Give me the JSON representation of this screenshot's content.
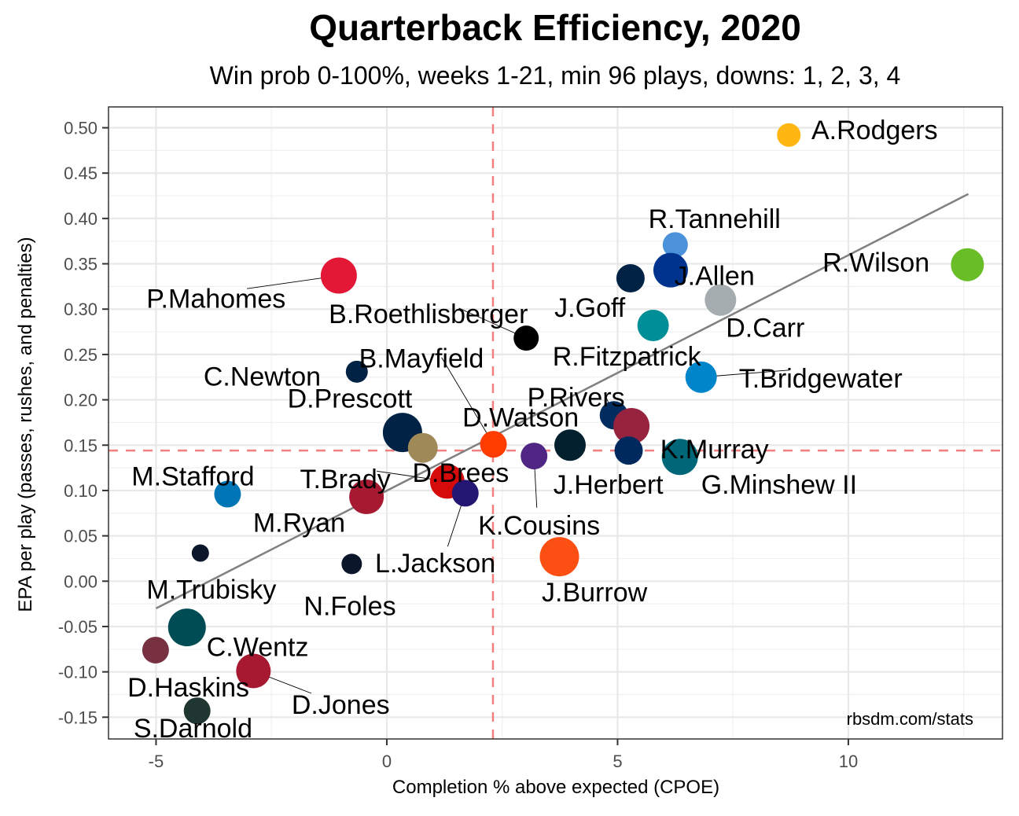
{
  "chart_data": {
    "type": "scatter",
    "title": "Quarterback Efficiency, 2020",
    "subtitle": "Win prob 0-100%, weeks 1-21, min 96 plays, downs: 1, 2, 3, 4",
    "xlabel": "Completion % above expected (CPOE)",
    "ylabel": "EPA per play (passes, rushes, and penalties)",
    "caption": "rbsdm.com/stats",
    "xlim": [
      -6.03,
      13.34
    ],
    "ylim": [
      -0.174,
      0.523
    ],
    "xticks": [
      -5,
      0,
      5,
      10
    ],
    "xtick_labels": [
      "-5",
      "0",
      "5",
      "10"
    ],
    "yticks": [
      -0.15,
      -0.1,
      -0.05,
      0.0,
      0.05,
      0.1,
      0.15,
      0.2,
      0.25,
      0.3,
      0.35,
      0.4,
      0.45,
      0.5
    ],
    "ytick_labels": [
      "-0.15",
      "-0.10",
      "-0.05",
      "0.00",
      "0.05",
      "0.10",
      "0.15",
      "0.20",
      "0.25",
      "0.30",
      "0.35",
      "0.40",
      "0.45",
      "0.50"
    ],
    "grid": true,
    "reference_lines": {
      "mean_cpoe": 2.3,
      "mean_epa": 0.144,
      "color": "#f08080"
    },
    "trend_line": {
      "x": [
        -5.0,
        12.6
      ],
      "y": [
        -0.03,
        0.427
      ],
      "color": "#808080"
    },
    "points": [
      {
        "name": "A.Rodgers",
        "x": 8.71,
        "y": 0.492,
        "size": 15,
        "color": "#FFB612",
        "lx": 9.2,
        "ly": 0.498,
        "anchor": "start"
      },
      {
        "name": "R.Wilson",
        "x": 12.58,
        "y": 0.349,
        "size": 21,
        "color": "#69BE28",
        "lx": 10.6,
        "ly": 0.352,
        "anchor": "middle"
      },
      {
        "name": "R.Tannehill",
        "x": 6.25,
        "y": 0.371,
        "size": 16,
        "color": "#4B92DB",
        "lx": 7.1,
        "ly": 0.4,
        "anchor": "middle"
      },
      {
        "name": "J.Allen",
        "x": 6.15,
        "y": 0.343,
        "size": 22,
        "color": "#00338D",
        "lx": 7.1,
        "ly": 0.337,
        "anchor": "middle"
      },
      {
        "name": "J.Goff",
        "x": 5.28,
        "y": 0.334,
        "size": 18,
        "color": "#002244",
        "lx": 4.4,
        "ly": 0.302,
        "anchor": "middle"
      },
      {
        "name": "D.Carr",
        "x": 7.23,
        "y": 0.31,
        "size": 20,
        "color": "#A5ACAF",
        "lx": 8.2,
        "ly": 0.28,
        "anchor": "middle"
      },
      {
        "name": "R.Fitzpatrick",
        "x": 5.77,
        "y": 0.282,
        "size": 20,
        "color": "#008E97",
        "lx": 5.2,
        "ly": 0.248,
        "anchor": "middle"
      },
      {
        "name": "B.Roethlisberger",
        "x": 3.02,
        "y": 0.268,
        "size": 16,
        "color": "#000000",
        "lx": 0.9,
        "ly": 0.295,
        "anchor": "middle",
        "leader": true
      },
      {
        "name": "T.Bridgewater",
        "x": 6.81,
        "y": 0.225,
        "size": 20,
        "color": "#0085CA",
        "lx": 9.4,
        "ly": 0.224,
        "anchor": "middle",
        "leader": true
      },
      {
        "name": "P.Mahomes",
        "x": -1.04,
        "y": 0.337,
        "size": 23,
        "color": "#E31837",
        "lx": -3.7,
        "ly": 0.312,
        "anchor": "middle",
        "leader": true
      },
      {
        "name": "C.Newton",
        "x": -0.65,
        "y": 0.231,
        "size": 14,
        "color": "#002244",
        "lx": -2.7,
        "ly": 0.226,
        "anchor": "middle"
      },
      {
        "name": "B.Mayfield",
        "x": 2.31,
        "y": 0.151,
        "size": 17,
        "color": "#FF3C00",
        "lx": 0.75,
        "ly": 0.246,
        "anchor": "middle",
        "leader": true
      },
      {
        "name": "P.Rivers",
        "x": 4.92,
        "y": 0.183,
        "size": 18,
        "color": "#002C5F",
        "lx": 4.1,
        "ly": 0.203,
        "anchor": "middle",
        "leader": true
      },
      {
        "name": "K.Murray",
        "x": 5.3,
        "y": 0.171,
        "size": 23,
        "color": "#97233F",
        "lx": 7.1,
        "ly": 0.146,
        "anchor": "middle"
      },
      {
        "name": "D.Prescott",
        "x": 0.34,
        "y": 0.164,
        "size": 25,
        "color": "#002244",
        "lx": -0.8,
        "ly": 0.202,
        "anchor": "middle"
      },
      {
        "name": "D.Brees",
        "x": 0.78,
        "y": 0.147,
        "size": 19,
        "color": "#9F8958",
        "lx": 1.6,
        "ly": 0.12,
        "anchor": "middle"
      },
      {
        "name": "D.Watson",
        "x": 3.97,
        "y": 0.15,
        "size": 20,
        "color": "#03202F",
        "lx": 2.9,
        "ly": 0.181,
        "anchor": "middle"
      },
      {
        "name": "K.Cousins",
        "x": 3.19,
        "y": 0.138,
        "size": 17,
        "color": "#4F2683",
        "lx": 3.3,
        "ly": 0.062,
        "anchor": "middle",
        "leader": true
      },
      {
        "name": "J.Herbert",
        "x": 5.24,
        "y": 0.144,
        "size": 18,
        "color": "#002A5E",
        "lx": 4.8,
        "ly": 0.107,
        "anchor": "middle"
      },
      {
        "name": "G.Minshew II",
        "x": 6.35,
        "y": 0.137,
        "size": 23,
        "color": "#006778",
        "lx": 8.5,
        "ly": 0.107,
        "anchor": "middle"
      },
      {
        "name": "T.Brady",
        "x": 1.31,
        "y": 0.11,
        "size": 22,
        "color": "#D50A0A",
        "lx": -0.9,
        "ly": 0.113,
        "anchor": "middle",
        "leader": true
      },
      {
        "name": "L.Jackson",
        "x": 1.7,
        "y": 0.097,
        "size": 17,
        "color": "#241773",
        "lx": 1.05,
        "ly": 0.02,
        "anchor": "middle",
        "leader": true
      },
      {
        "name": "M.Ryan",
        "x": -0.44,
        "y": 0.093,
        "size": 22,
        "color": "#A71930",
        "lx": -1.9,
        "ly": 0.065,
        "anchor": "middle"
      },
      {
        "name": "M.Stafford",
        "x": -3.45,
        "y": 0.096,
        "size": 17,
        "color": "#0076B6",
        "lx": -4.2,
        "ly": 0.116,
        "anchor": "middle"
      },
      {
        "name": "M.Trubisky",
        "x": -4.04,
        "y": 0.031,
        "size": 11,
        "color": "#0B162A",
        "lx": -3.8,
        "ly": -0.009,
        "anchor": "middle"
      },
      {
        "name": "N.Foles",
        "x": -0.76,
        "y": 0.019,
        "size": 13,
        "color": "#0B162A",
        "lx": -0.8,
        "ly": -0.027,
        "anchor": "middle"
      },
      {
        "name": "J.Burrow",
        "x": 3.74,
        "y": 0.027,
        "size": 25,
        "color": "#FB4F14",
        "lx": 4.5,
        "ly": -0.012,
        "anchor": "middle"
      },
      {
        "name": "C.Wentz",
        "x": -4.33,
        "y": -0.051,
        "size": 24,
        "color": "#004C54",
        "lx": -2.8,
        "ly": -0.072,
        "anchor": "middle"
      },
      {
        "name": "D.Haskins",
        "x": -5.01,
        "y": -0.076,
        "size": 17,
        "color": "#773141",
        "lx": -4.3,
        "ly": -0.117,
        "anchor": "middle"
      },
      {
        "name": "D.Jones",
        "x": -2.89,
        "y": -0.099,
        "size": 22,
        "color": "#A71930",
        "lx": -1.0,
        "ly": -0.136,
        "anchor": "middle",
        "leader": true
      },
      {
        "name": "S.Darnold",
        "x": -4.11,
        "y": -0.143,
        "size": 17,
        "color": "#203731",
        "lx": -4.2,
        "ly": -0.162,
        "anchor": "middle"
      }
    ]
  }
}
